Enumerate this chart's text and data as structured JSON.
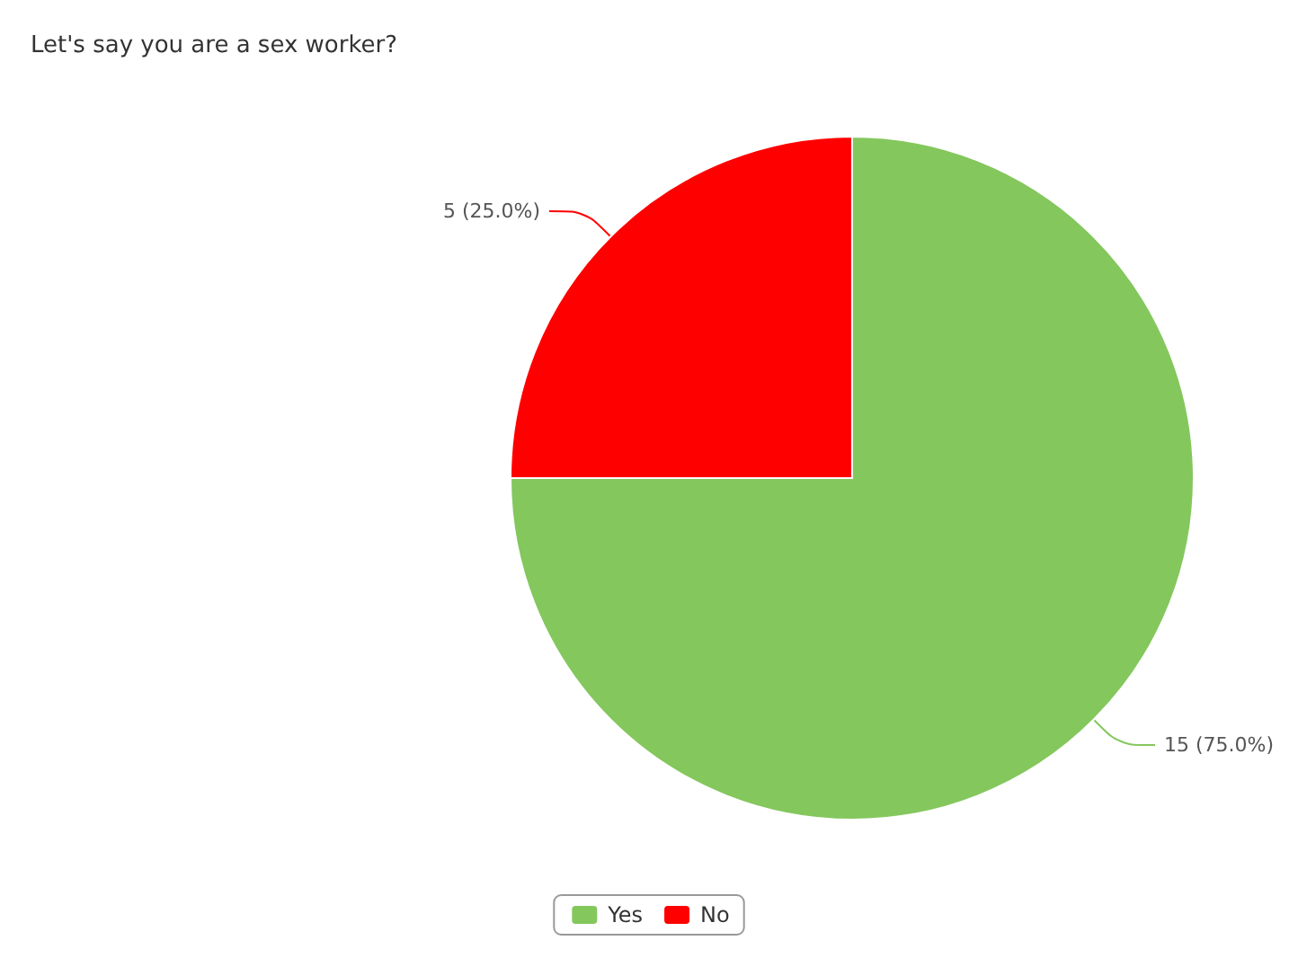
{
  "chart_data": {
    "type": "pie",
    "title": "Let's say you are a sex worker?",
    "categories": [
      "Yes",
      "No"
    ],
    "values": [
      15,
      5
    ],
    "colors": [
      "#84c75d",
      "#ff0000"
    ],
    "value_labels": [
      "15 (75.0%)",
      "5 (25.0%)"
    ],
    "legend": "bottom"
  }
}
